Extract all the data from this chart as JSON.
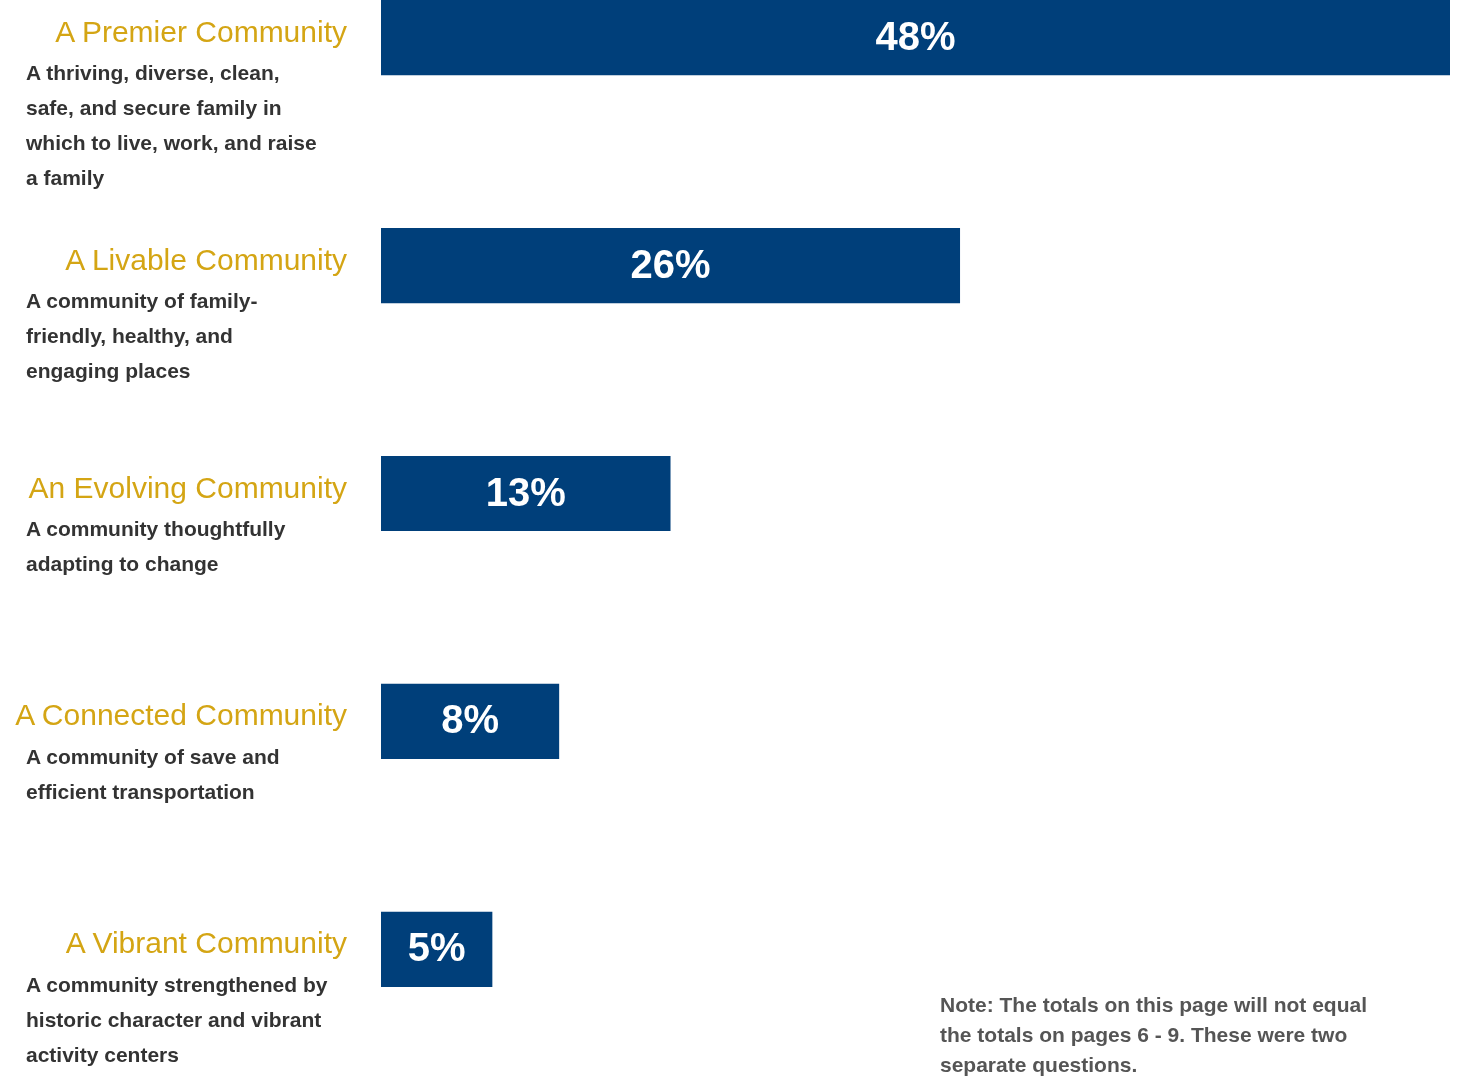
{
  "chart_data": {
    "type": "bar",
    "orientation": "horizontal",
    "categories": [
      "A Premier Community",
      "A Livable Community",
      "An Evolving Community",
      "A Connected Community",
      "A Vibrant Community"
    ],
    "values": [
      48,
      26,
      13,
      8,
      5
    ],
    "value_labels": [
      "48%",
      "26%",
      "13%",
      "8%",
      "5%"
    ],
    "color": "#003f7a",
    "annotations": [
      "A thriving, diverse, clean, safe, and secure family in which to live, work, and raise a family",
      "A community of family-friendly, healthy, and engaging places",
      "A community thoughtfully adapting to change",
      "A community of save and efficient transportation",
      "A community strengthened by historic character and vibrant activity centers",
      "Note: The totals on this page will not equal the totals on pages 6 - 9. These were two separate questions."
    ]
  }
}
